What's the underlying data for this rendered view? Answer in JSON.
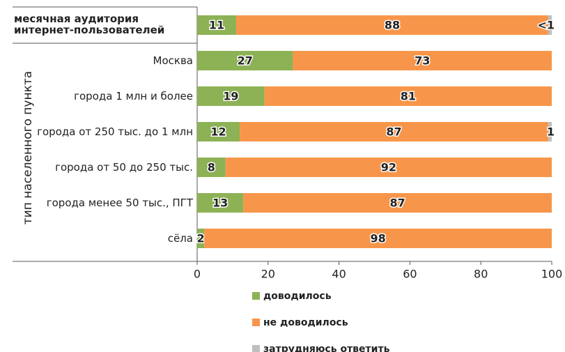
{
  "chart_data": {
    "type": "stacked_barh",
    "y_axis_label": "тип населенного пункта",
    "categories": [
      "месячная аудитория\nинтернет-пользователей",
      "Москва",
      "города 1 млн и более",
      "города от 250 тыс. до 1 млн",
      "города от 50 до 250 тыс.",
      "города менее 50 тыс., ПГТ",
      "сёла"
    ],
    "series": [
      {
        "name": "доводилось",
        "color": "#8db255",
        "values": [
          11,
          27,
          19,
          12,
          8,
          13,
          2
        ]
      },
      {
        "name": "не доводилось",
        "color": "#f7964a",
        "values": [
          88,
          73,
          81,
          87,
          92,
          87,
          98
        ]
      },
      {
        "name": "затрудняюсь ответить",
        "color": "#bfbfbf",
        "values": [
          1,
          null,
          null,
          1,
          null,
          null,
          null
        ],
        "value_labels": [
          "<1",
          null,
          null,
          "1",
          null,
          null,
          null
        ]
      }
    ],
    "xlim": [
      0,
      100
    ],
    "xticks": [
      0,
      20,
      40,
      60,
      80,
      100
    ]
  }
}
